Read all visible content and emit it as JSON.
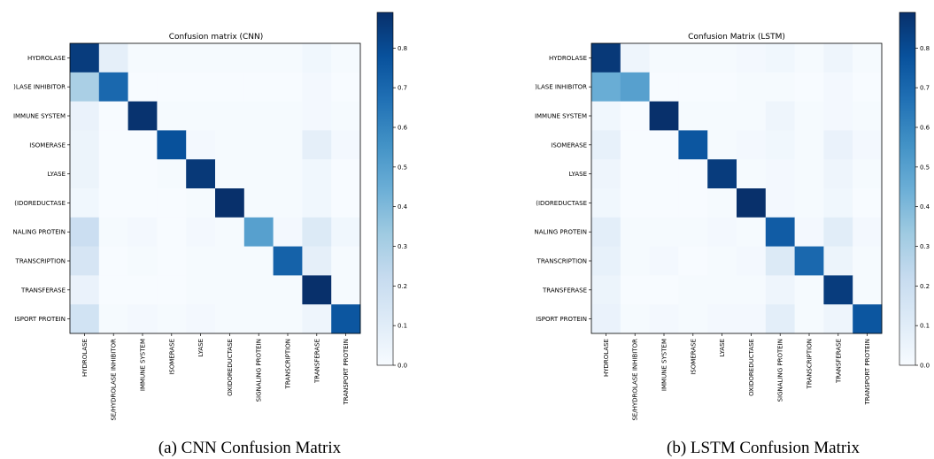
{
  "captions": [
    "(a) CNN Confusion Matrix",
    "(b) LSTM Confusion Matrix"
  ],
  "colormap": {
    "name": "Blues",
    "low": "#f7fbff",
    "high": "#08306b"
  },
  "chart_data": [
    {
      "type": "heatmap",
      "title": "Confusion matrix (CNN)",
      "row_labels": [
        "HYDROLASE",
        "HYDROLASE INHIBITOR",
        "IMMUNE SYSTEM",
        "ISOMERASE",
        "LYASE",
        "OXIDOREDUCTASE",
        "SIGNALING PROTEIN",
        "TRANSCRIPTION",
        "TRANSFERASE",
        "TRANSPORT PROTEIN"
      ],
      "row_labels_visible": [
        ")LASE INHIBITOR",
        "IMMUNE SYSTEM",
        "ISOMERASE",
        "LYASE",
        "(IDOREDUCTASE",
        "NALING PROTEIN",
        "TRANSCRIPTION",
        "TRANSFERASE",
        "ISPORT PROTEIN"
      ],
      "row_label_first": "HYDROLASE",
      "col_labels": [
        "HYDROLASE",
        "SE/HYDROLASE INHIBITOR",
        "IMMUNE SYSTEM",
        "ISOMERASE",
        "LYASE",
        "OXIDOREDUCTASE",
        "SIGNALING PROTEIN",
        "TRANSCRIPTION",
        "TRANSFERASE",
        "TRANSPORT PROTEIN"
      ],
      "values": [
        [
          0.85,
          0.08,
          0.01,
          0.01,
          0.01,
          0.01,
          0.01,
          0.01,
          0.03,
          0.01
        ],
        [
          0.3,
          0.7,
          0.0,
          0.0,
          0.0,
          0.0,
          0.0,
          0.0,
          0.02,
          0.0
        ],
        [
          0.06,
          0.0,
          0.88,
          0.01,
          0.01,
          0.01,
          0.01,
          0.01,
          0.02,
          0.01
        ],
        [
          0.05,
          0.0,
          0.0,
          0.78,
          0.02,
          0.01,
          0.01,
          0.01,
          0.08,
          0.02
        ],
        [
          0.05,
          0.0,
          0.0,
          0.01,
          0.86,
          0.01,
          0.01,
          0.01,
          0.03,
          0.0
        ],
        [
          0.03,
          0.0,
          0.0,
          0.0,
          0.01,
          0.9,
          0.01,
          0.01,
          0.03,
          0.0
        ],
        [
          0.2,
          0.01,
          0.02,
          0.0,
          0.02,
          0.01,
          0.5,
          0.02,
          0.12,
          0.03
        ],
        [
          0.15,
          0.0,
          0.01,
          0.0,
          0.01,
          0.01,
          0.01,
          0.72,
          0.08,
          0.01
        ],
        [
          0.06,
          0.0,
          0.0,
          0.0,
          0.01,
          0.01,
          0.01,
          0.01,
          0.92,
          0.01
        ],
        [
          0.17,
          0.01,
          0.02,
          0.01,
          0.02,
          0.01,
          0.01,
          0.01,
          0.04,
          0.76
        ]
      ],
      "colorbar": {
        "ticks": [
          "0.0",
          "0.1",
          "0.2",
          "0.3",
          "0.4",
          "0.5",
          "0.6",
          "0.7",
          "0.8"
        ],
        "range": [
          0,
          0.89
        ]
      }
    },
    {
      "type": "heatmap",
      "title": "Confusion Matrix (LSTM)",
      "row_labels": [
        "HYDROLASE",
        "HYDROLASE INHIBITOR",
        "IMMUNE SYSTEM",
        "ISOMERASE",
        "LYASE",
        "OXIDOREDUCTASE",
        "SIGNALING PROTEIN",
        "TRANSCRIPTION",
        "TRANSFERASE",
        "TRANSPORT PROTEIN"
      ],
      "row_labels_visible": [
        ")LASE INHIBITOR",
        "IMMUNE SYSTEM",
        "ISOMERASE",
        "LYASE",
        "(IDOREDUCTASE",
        "NALING PROTEIN",
        "TRANSCRIPTION",
        "TRANSFERASE",
        "ISPORT PROTEIN"
      ],
      "row_label_first": "HYDROLASE",
      "col_labels": [
        "HYDROLASE",
        "SE/HYDROLASE INHIBITOR",
        "IMMUNE SYSTEM",
        "ISOMERASE",
        "LYASE",
        "OXIDOREDUCTASE",
        "SIGNALING PROTEIN",
        "TRANSCRIPTION",
        "TRANSFERASE",
        "TRANSPORT PROTEIN"
      ],
      "values": [
        [
          0.86,
          0.04,
          0.01,
          0.01,
          0.01,
          0.02,
          0.03,
          0.01,
          0.04,
          0.01
        ],
        [
          0.45,
          0.5,
          0.0,
          0.0,
          0.0,
          0.01,
          0.01,
          0.0,
          0.02,
          0.0
        ],
        [
          0.03,
          0.0,
          0.9,
          0.01,
          0.01,
          0.01,
          0.04,
          0.01,
          0.02,
          0.01
        ],
        [
          0.07,
          0.0,
          0.0,
          0.76,
          0.01,
          0.02,
          0.03,
          0.01,
          0.06,
          0.02
        ],
        [
          0.04,
          0.0,
          0.0,
          0.0,
          0.85,
          0.01,
          0.02,
          0.01,
          0.04,
          0.01
        ],
        [
          0.03,
          0.0,
          0.0,
          0.0,
          0.01,
          0.9,
          0.02,
          0.01,
          0.03,
          0.0
        ],
        [
          0.09,
          0.01,
          0.01,
          0.01,
          0.02,
          0.01,
          0.74,
          0.02,
          0.1,
          0.02
        ],
        [
          0.07,
          0.01,
          0.02,
          0.0,
          0.01,
          0.02,
          0.12,
          0.7,
          0.05,
          0.01
        ],
        [
          0.05,
          0.0,
          0.0,
          0.01,
          0.01,
          0.01,
          0.04,
          0.01,
          0.85,
          0.01
        ],
        [
          0.06,
          0.01,
          0.02,
          0.01,
          0.02,
          0.02,
          0.09,
          0.01,
          0.04,
          0.76
        ]
      ],
      "colorbar": {
        "ticks": [
          "0.0",
          "0.1",
          "0.2",
          "0.3",
          "0.4",
          "0.5",
          "0.6",
          "0.7",
          "0.8"
        ],
        "range": [
          0,
          0.89
        ]
      }
    }
  ]
}
